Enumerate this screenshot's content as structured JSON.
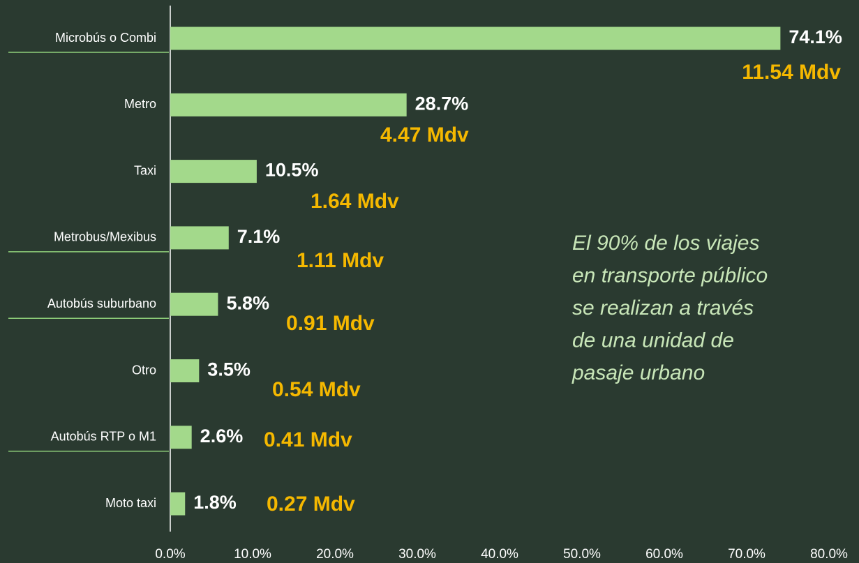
{
  "chart_data": {
    "type": "hbar",
    "categories": [
      "Microbús o Combi",
      "Metro",
      "Taxi",
      "Metrobus/Mexibus",
      "Autobús suburbano",
      "Otro",
      "Autobús RTP o M1",
      "Moto taxi"
    ],
    "values": [
      74.1,
      28.7,
      10.5,
      7.1,
      5.8,
      3.5,
      2.6,
      1.8
    ],
    "value_labels": [
      "74.1%",
      "28.7%",
      "10.5%",
      "7.1%",
      "5.8%",
      "3.5%",
      "2.6%",
      "1.8%"
    ],
    "trip_labels": [
      "11.54 Mdv",
      "4.47 Mdv",
      "1.64 Mdv",
      "1.11 Mdv",
      "0.91 Mdv",
      "0.54 Mdv",
      "0.41 Mdv",
      "0.27 Mdv"
    ],
    "color": "#a3d98b",
    "xlim": [
      0,
      80
    ],
    "xticks": [
      {
        "value": 0,
        "label": "0.0%"
      },
      {
        "value": 10,
        "label": "10.0%"
      },
      {
        "value": 20,
        "label": "20.0%"
      },
      {
        "value": 30,
        "label": "30.0%"
      },
      {
        "value": 40,
        "label": "40.0%"
      },
      {
        "value": 50,
        "label": "50.0%"
      },
      {
        "value": 60,
        "label": "60.0%"
      },
      {
        "value": 70,
        "label": "70.0%"
      },
      {
        "value": 80,
        "label": "80.0%"
      }
    ],
    "annotation": [
      "El 90% de los viajes",
      "en transporte público",
      "se realizan a través",
      "de una unidad de",
      "pasaje urbano"
    ]
  }
}
